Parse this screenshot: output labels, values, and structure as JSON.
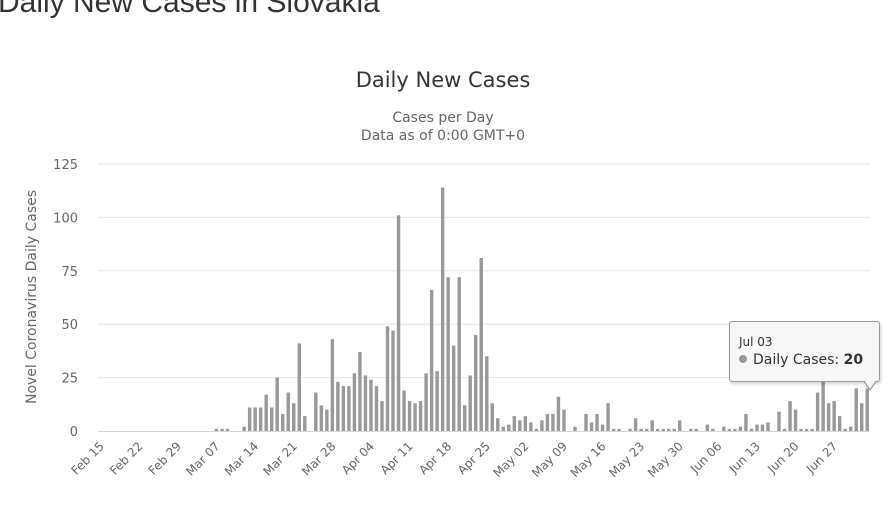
{
  "page": {
    "title": "Daily New Cases in Slovakia"
  },
  "chart_data": {
    "type": "bar",
    "title": "Daily New Cases",
    "subtitle_line1": "Cases per Day",
    "subtitle_line2": "Data as of 0:00 GMT+0",
    "ylabel": "Novel Coronavirus Daily Cases",
    "ylim": [
      0,
      125
    ],
    "yticks": [
      0,
      25,
      50,
      75,
      100,
      125
    ],
    "grid": true,
    "bar_color": "#999999",
    "grid_color": "#e6e6e6",
    "axis_color": "#ccd6eb",
    "categories": [
      "Feb 15",
      "Feb 16",
      "Feb 17",
      "Feb 18",
      "Feb 19",
      "Feb 20",
      "Feb 21",
      "Feb 22",
      "Feb 23",
      "Feb 24",
      "Feb 25",
      "Feb 26",
      "Feb 27",
      "Feb 28",
      "Feb 29",
      "Mar 01",
      "Mar 02",
      "Mar 03",
      "Mar 04",
      "Mar 05",
      "Mar 06",
      "Mar 07",
      "Mar 08",
      "Mar 09",
      "Mar 10",
      "Mar 11",
      "Mar 12",
      "Mar 13",
      "Mar 14",
      "Mar 15",
      "Mar 16",
      "Mar 17",
      "Mar 18",
      "Mar 19",
      "Mar 20",
      "Mar 21",
      "Mar 22",
      "Mar 23",
      "Mar 24",
      "Mar 25",
      "Mar 26",
      "Mar 27",
      "Mar 28",
      "Mar 29",
      "Mar 30",
      "Mar 31",
      "Apr 01",
      "Apr 02",
      "Apr 03",
      "Apr 04",
      "Apr 05",
      "Apr 06",
      "Apr 07",
      "Apr 08",
      "Apr 09",
      "Apr 10",
      "Apr 11",
      "Apr 12",
      "Apr 13",
      "Apr 14",
      "Apr 15",
      "Apr 16",
      "Apr 17",
      "Apr 18",
      "Apr 19",
      "Apr 20",
      "Apr 21",
      "Apr 22",
      "Apr 23",
      "Apr 24",
      "Apr 25",
      "Apr 26",
      "Apr 27",
      "Apr 28",
      "Apr 29",
      "Apr 30",
      "May 01",
      "May 02",
      "May 03",
      "May 04",
      "May 05",
      "May 06",
      "May 07",
      "May 08",
      "May 09",
      "May 10",
      "May 11",
      "May 12",
      "May 13",
      "May 14",
      "May 15",
      "May 16",
      "May 17",
      "May 18",
      "May 19",
      "May 20",
      "May 21",
      "May 22",
      "May 23",
      "May 24",
      "May 25",
      "May 26",
      "May 27",
      "May 28",
      "May 29",
      "May 30",
      "May 31",
      "Jun 01",
      "Jun 02",
      "Jun 03",
      "Jun 04",
      "Jun 05",
      "Jun 06",
      "Jun 07",
      "Jun 08",
      "Jun 09",
      "Jun 10",
      "Jun 11",
      "Jun 12",
      "Jun 13",
      "Jun 14",
      "Jun 15",
      "Jun 16",
      "Jun 17",
      "Jun 18",
      "Jun 19",
      "Jun 20",
      "Jun 21",
      "Jun 22",
      "Jun 23",
      "Jun 24",
      "Jun 25",
      "Jun 26",
      "Jun 27",
      "Jun 28",
      "Jun 29",
      "Jun 30",
      "Jul 01",
      "Jul 02",
      "Jul 03"
    ],
    "xtick_labels": [
      "Feb 15",
      "Feb 22",
      "Feb 29",
      "Mar 07",
      "Mar 14",
      "Mar 21",
      "Mar 28",
      "Apr 04",
      "Apr 11",
      "Apr 18",
      "Apr 25",
      "May 02",
      "May 09",
      "May 16",
      "May 23",
      "May 30",
      "Jun 06",
      "Jun 13",
      "Jun 20",
      "Jun 27"
    ],
    "series": [
      {
        "name": "Daily Cases",
        "values": [
          0,
          0,
          0,
          0,
          0,
          0,
          0,
          0,
          0,
          0,
          0,
          0,
          0,
          0,
          0,
          0,
          0,
          0,
          0,
          0,
          0,
          1,
          1,
          1,
          0,
          0,
          2,
          11,
          11,
          11,
          17,
          11,
          25,
          8,
          18,
          13,
          41,
          7,
          0,
          18,
          12,
          10,
          43,
          23,
          21,
          21,
          27,
          37,
          26,
          24,
          21,
          14,
          49,
          47,
          101,
          19,
          14,
          13,
          14,
          27,
          66,
          28,
          114,
          72,
          40,
          72,
          12,
          26,
          45,
          81,
          35,
          13,
          6,
          2,
          3,
          7,
          5,
          7,
          4,
          1,
          5,
          8,
          8,
          16,
          10,
          0,
          2,
          0,
          8,
          4,
          8,
          3,
          13,
          1,
          1,
          0,
          1,
          6,
          1,
          1,
          5,
          1,
          1,
          1,
          1,
          5,
          0,
          1,
          1,
          0,
          3,
          1,
          0,
          2,
          1,
          1,
          2,
          8,
          1,
          3,
          3,
          4,
          0,
          9,
          1,
          14,
          10,
          1,
          1,
          1,
          18,
          29,
          13,
          14,
          7,
          1,
          2,
          20,
          13,
          20
        ]
      }
    ],
    "tooltip": {
      "date": "Jul 03",
      "series_label": "Daily Cases",
      "value": "20"
    }
  }
}
